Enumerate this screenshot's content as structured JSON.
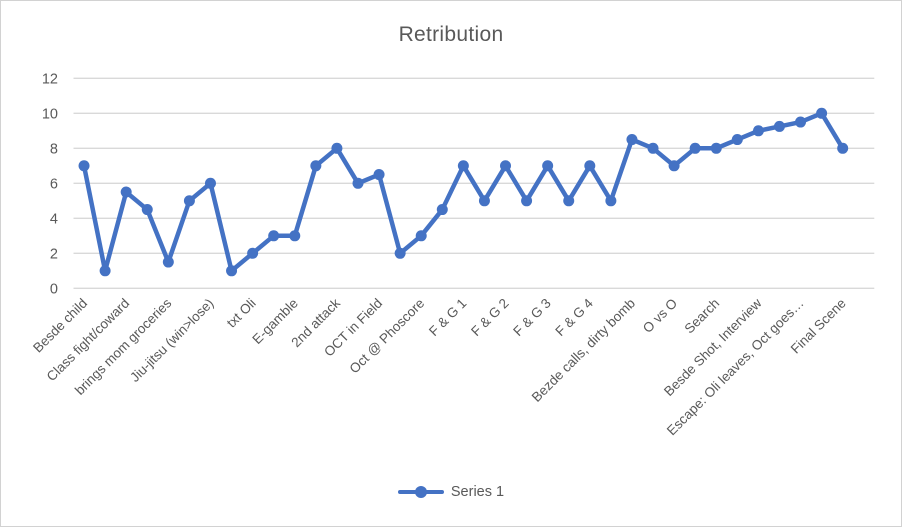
{
  "chart_data": {
    "type": "line",
    "title": "Retribution",
    "x_labels": [
      "Besde child",
      "Class fight/coward",
      "brings mom groceries",
      "Jiu-jitsu (win>lose)",
      "txt Oli",
      "E-gamble",
      "2nd attack",
      "OCT in Field",
      "Oct @ Phoscore",
      "F & G 1",
      "F & G 2",
      "F & G 3",
      "F & G 4",
      "Bezde calls, dirty bomb",
      "O vs O",
      "Search",
      "Besde Shot, Interview",
      "Escape: Oli leaves, Oct goes…",
      "Final Scene"
    ],
    "x_label_every": 2,
    "n_slots": 38,
    "series": [
      {
        "name": "Series 1",
        "color": "#4472C4",
        "values": [
          7,
          1,
          5.5,
          4.5,
          1.5,
          5,
          6,
          1,
          2,
          3,
          3,
          7,
          8,
          6,
          6.5,
          2,
          3,
          4.5,
          7,
          5,
          7,
          5,
          7,
          5,
          7,
          5,
          8.5,
          8,
          7,
          8,
          8,
          8.5,
          9,
          9.25,
          9.5,
          10,
          8
        ]
      }
    ],
    "ylim": [
      0,
      12
    ],
    "y_ticks": [
      0,
      2,
      4,
      6,
      8,
      10,
      12
    ],
    "grid": true,
    "legend_position": "bottom",
    "colors": {
      "line": "#4472C4",
      "text": "#595959",
      "gridline": "#d9d9d9",
      "border": "#d2d2d2",
      "background": "#ffffff"
    }
  }
}
